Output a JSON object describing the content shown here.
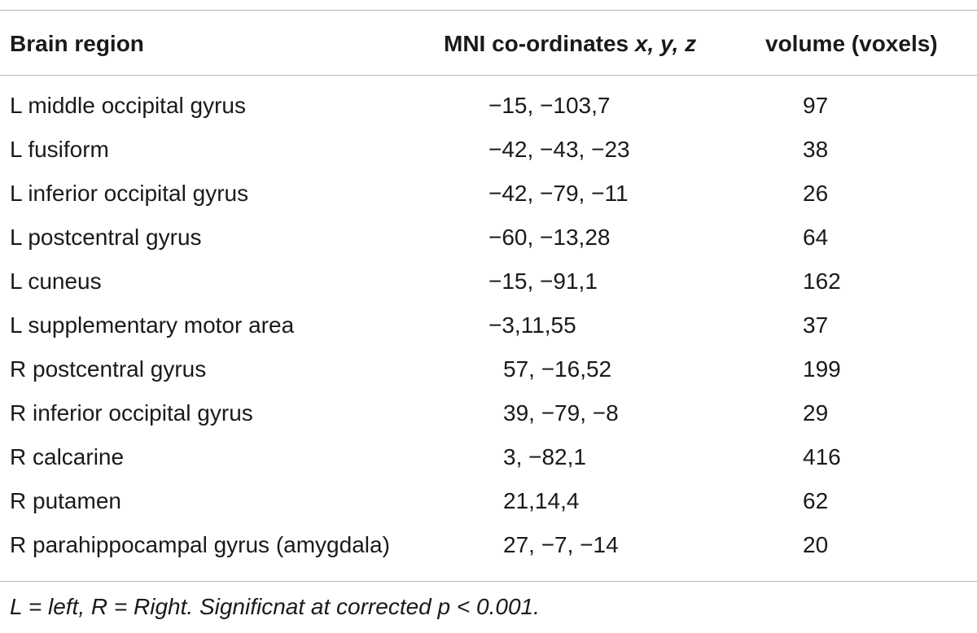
{
  "table": {
    "headers": {
      "region": "Brain region",
      "mni_prefix": "MNI co-ordinates ",
      "mni_axes": "x, y, z",
      "volume": "volume (voxels)"
    },
    "rows": [
      {
        "region": "L middle occipital gyrus",
        "mni": "−15, −103,7",
        "volume": "97"
      },
      {
        "region": "L fusiform",
        "mni": "−42, −43, −23",
        "volume": "38"
      },
      {
        "region": "L inferior occipital gyrus",
        "mni": "−42, −79, −11",
        "volume": "26"
      },
      {
        "region": "L postcentral gyrus",
        "mni": "−60, −13,28",
        "volume": "64"
      },
      {
        "region": "L cuneus",
        "mni": "−15, −91,1",
        "volume": "162"
      },
      {
        "region": "L supplementary motor area",
        "mni": "−3,11,55",
        "volume": "37"
      },
      {
        "region": "R postcentral gyrus",
        "mni": "57, −16,52",
        "volume": "199"
      },
      {
        "region": "R inferior occipital gyrus",
        "mni": "39, −79, −8",
        "volume": "29"
      },
      {
        "region": "R calcarine",
        "mni": "3, −82,1",
        "volume": "416"
      },
      {
        "region": "R putamen",
        "mni": "21,14,4",
        "volume": "62"
      },
      {
        "region": "R parahippocampal gyrus (amygdala)",
        "mni": "27, −7, −14",
        "volume": "20"
      }
    ],
    "footnote": "L = left, R = Right. Significnat at corrected p < 0.001."
  }
}
